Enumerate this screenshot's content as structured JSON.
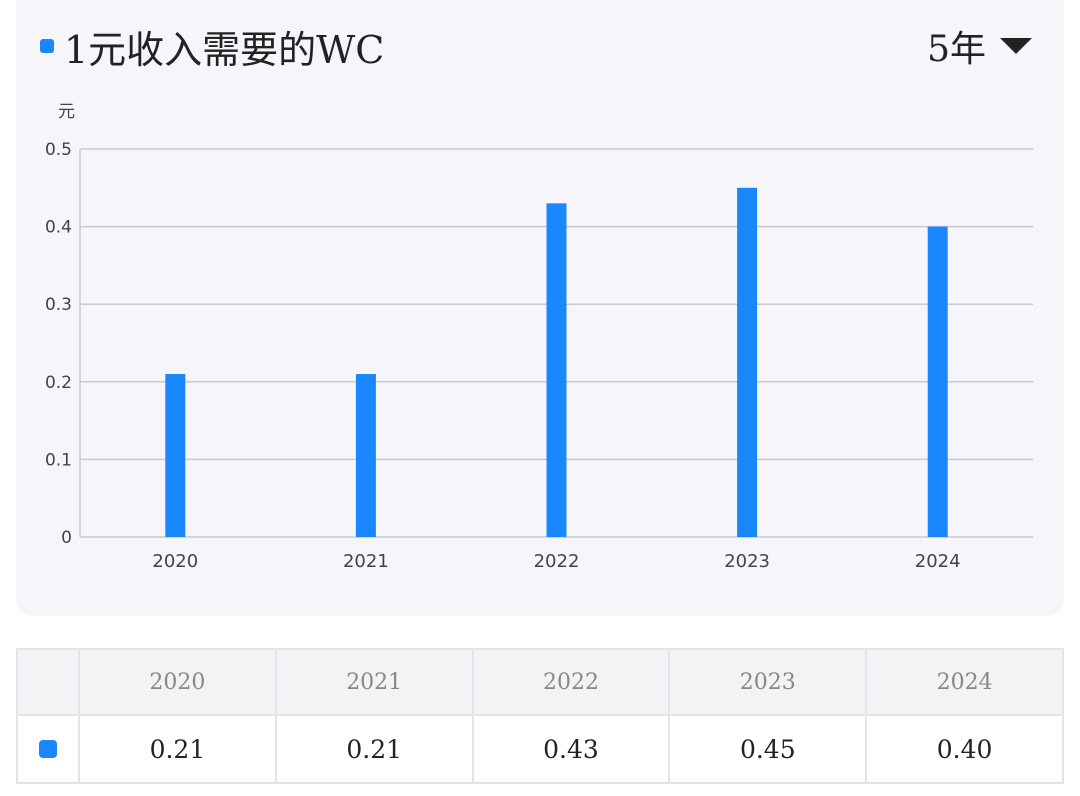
{
  "header": {
    "title": "1元收入需要的WC",
    "period": "5年"
  },
  "colors": {
    "accent": "#1a87ff"
  },
  "chart_data": {
    "type": "bar",
    "title": "1元收入需要的WC",
    "ylabel": "元",
    "categories": [
      "2020",
      "2021",
      "2022",
      "2023",
      "2024"
    ],
    "series": [
      {
        "values": [
          0.21,
          0.21,
          0.43,
          0.45,
          0.4
        ]
      }
    ],
    "ylim": [
      0,
      0.5
    ],
    "yticks": [
      "0",
      "0.1",
      "0.2",
      "0.3",
      "0.4",
      "0.5"
    ],
    "grid": true
  },
  "table": {
    "columns": [
      "2020",
      "2021",
      "2022",
      "2023",
      "2024"
    ],
    "values": [
      "0.21",
      "0.21",
      "0.43",
      "0.45",
      "0.40"
    ]
  }
}
